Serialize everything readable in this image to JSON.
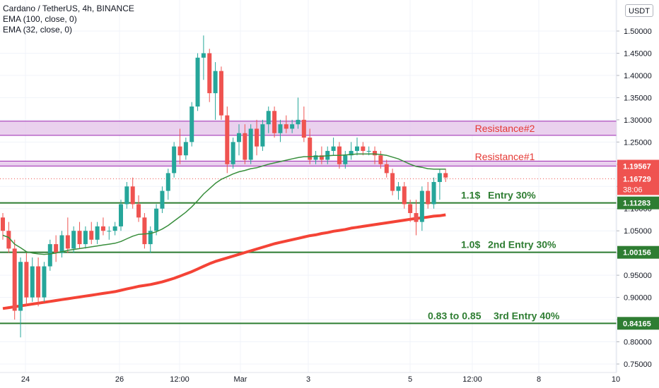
{
  "legend": {
    "symbol": "Cardano / TetherUS, 4h, BINANCE",
    "ema1": "EMA (100, close, 0)",
    "ema2": "EMA (32, close, 0)"
  },
  "currency_button": "USDT",
  "colors": {
    "up": "#26a69a",
    "down": "#ef5350",
    "ema_fast": "#388e3c",
    "ema_slow": "#f44336",
    "support": "#2e7d32",
    "resistance_text": "#e53935",
    "zone_fill": "#e1bee7",
    "zone_line": "#9c27b0"
  },
  "chart_data": {
    "type": "candlestick",
    "y_range": [
      0.745,
      1.535
    ],
    "y_ticks": [
      "1.50000",
      "1.45000",
      "1.40000",
      "1.35000",
      "1.30000",
      "1.25000",
      "1.20000",
      "1.15000",
      "1.10000",
      "1.05000",
      "1.00000",
      "0.95000",
      "0.90000",
      "0.85000",
      "0.80000",
      "0.75000"
    ],
    "x_ticks": [
      "24",
      "26",
      "12:00",
      "Mar",
      "3",
      "5",
      "12:00",
      "8",
      "10"
    ],
    "candles": [
      [
        1.08,
        1.09,
        1.03,
        1.05
      ],
      [
        1.05,
        1.07,
        1.0,
        1.01
      ],
      [
        1.01,
        1.03,
        0.85,
        0.87
      ],
      [
        0.87,
        0.99,
        0.81,
        0.98
      ],
      [
        0.98,
        1.0,
        0.88,
        0.9
      ],
      [
        0.9,
        0.99,
        0.89,
        0.97
      ],
      [
        0.97,
        0.99,
        0.88,
        0.9
      ],
      [
        0.9,
        0.98,
        0.89,
        0.97
      ],
      [
        0.97,
        1.03,
        0.96,
        1.02
      ],
      [
        1.02,
        1.04,
        0.98,
        1.0
      ],
      [
        1.0,
        1.05,
        0.99,
        1.04
      ],
      [
        1.04,
        1.08,
        1.0,
        1.01
      ],
      [
        1.01,
        1.06,
        1.0,
        1.05
      ],
      [
        1.05,
        1.07,
        1.01,
        1.02
      ],
      [
        1.02,
        1.06,
        1.01,
        1.05
      ],
      [
        1.05,
        1.07,
        1.02,
        1.03
      ],
      [
        1.03,
        1.07,
        1.02,
        1.06
      ],
      [
        1.06,
        1.08,
        1.04,
        1.05
      ],
      [
        1.05,
        1.06,
        1.03,
        1.05
      ],
      [
        1.05,
        1.07,
        1.04,
        1.06
      ],
      [
        1.06,
        1.12,
        1.05,
        1.11
      ],
      [
        1.11,
        1.16,
        1.1,
        1.15
      ],
      [
        1.15,
        1.17,
        1.1,
        1.11
      ],
      [
        1.11,
        1.13,
        1.07,
        1.08
      ],
      [
        1.08,
        1.09,
        1.01,
        1.02
      ],
      [
        1.02,
        1.06,
        1.0,
        1.05
      ],
      [
        1.05,
        1.11,
        1.04,
        1.1
      ],
      [
        1.1,
        1.15,
        1.09,
        1.14
      ],
      [
        1.14,
        1.19,
        1.12,
        1.18
      ],
      [
        1.18,
        1.25,
        1.17,
        1.24
      ],
      [
        1.24,
        1.28,
        1.2,
        1.22
      ],
      [
        1.22,
        1.26,
        1.21,
        1.25
      ],
      [
        1.25,
        1.34,
        1.24,
        1.33
      ],
      [
        1.33,
        1.45,
        1.32,
        1.44
      ],
      [
        1.44,
        1.49,
        1.39,
        1.45
      ],
      [
        1.45,
        1.46,
        1.34,
        1.36
      ],
      [
        1.36,
        1.43,
        1.3,
        1.41
      ],
      [
        1.41,
        1.42,
        1.3,
        1.31
      ],
      [
        1.31,
        1.33,
        1.18,
        1.2
      ],
      [
        1.2,
        1.26,
        1.19,
        1.25
      ],
      [
        1.25,
        1.29,
        1.22,
        1.27
      ],
      [
        1.27,
        1.29,
        1.2,
        1.21
      ],
      [
        1.21,
        1.29,
        1.2,
        1.28
      ],
      [
        1.28,
        1.3,
        1.22,
        1.24
      ],
      [
        1.24,
        1.3,
        1.23,
        1.29
      ],
      [
        1.29,
        1.33,
        1.27,
        1.32
      ],
      [
        1.32,
        1.33,
        1.26,
        1.27
      ],
      [
        1.27,
        1.3,
        1.25,
        1.29
      ],
      [
        1.29,
        1.31,
        1.27,
        1.28
      ],
      [
        1.28,
        1.3,
        1.27,
        1.29
      ],
      [
        1.29,
        1.35,
        1.28,
        1.3
      ],
      [
        1.3,
        1.33,
        1.25,
        1.26
      ],
      [
        1.26,
        1.28,
        1.2,
        1.21
      ],
      [
        1.21,
        1.23,
        1.2,
        1.22
      ],
      [
        1.22,
        1.24,
        1.2,
        1.21
      ],
      [
        1.21,
        1.24,
        1.2,
        1.23
      ],
      [
        1.23,
        1.26,
        1.22,
        1.24
      ],
      [
        1.24,
        1.25,
        1.19,
        1.2
      ],
      [
        1.2,
        1.23,
        1.19,
        1.22
      ],
      [
        1.22,
        1.25,
        1.21,
        1.23
      ],
      [
        1.23,
        1.26,
        1.22,
        1.24
      ],
      [
        1.24,
        1.25,
        1.22,
        1.23
      ],
      [
        1.23,
        1.24,
        1.22,
        1.23
      ],
      [
        1.23,
        1.24,
        1.2,
        1.22
      ],
      [
        1.22,
        1.23,
        1.19,
        1.2
      ],
      [
        1.2,
        1.21,
        1.17,
        1.18
      ],
      [
        1.18,
        1.19,
        1.13,
        1.14
      ],
      [
        1.14,
        1.16,
        1.12,
        1.15
      ],
      [
        1.15,
        1.16,
        1.1,
        1.11
      ],
      [
        1.11,
        1.12,
        1.07,
        1.09
      ],
      [
        1.09,
        1.12,
        1.04,
        1.07
      ],
      [
        1.07,
        1.15,
        1.05,
        1.14
      ],
      [
        1.14,
        1.16,
        1.1,
        1.11
      ],
      [
        1.11,
        1.17,
        1.1,
        1.16
      ],
      [
        1.16,
        1.19,
        1.12,
        1.18
      ],
      [
        1.18,
        1.19,
        1.16,
        1.17
      ]
    ],
    "ema_fast": [
      1.04,
      1.035,
      1.02,
      1.012,
      1.003,
      1.0,
      0.998,
      0.997,
      0.998,
      1.0,
      1.003,
      1.006,
      1.008,
      1.01,
      1.012,
      1.014,
      1.016,
      1.018,
      1.02,
      1.022,
      1.026,
      1.032,
      1.038,
      1.042,
      1.043,
      1.044,
      1.048,
      1.054,
      1.062,
      1.072,
      1.082,
      1.092,
      1.104,
      1.118,
      1.133,
      1.145,
      1.157,
      1.166,
      1.172,
      1.178,
      1.183,
      1.186,
      1.19,
      1.192,
      1.196,
      1.2,
      1.203,
      1.206,
      1.209,
      1.212,
      1.215,
      1.217,
      1.217,
      1.218,
      1.218,
      1.219,
      1.22,
      1.22,
      1.221,
      1.222,
      1.223,
      1.223,
      1.223,
      1.223,
      1.222,
      1.22,
      1.216,
      1.212,
      1.206,
      1.2,
      1.195,
      1.193,
      1.19,
      1.189,
      1.189,
      1.189
    ],
    "ema_slow": [
      0.875,
      0.877,
      0.879,
      0.881,
      0.883,
      0.885,
      0.887,
      0.889,
      0.891,
      0.893,
      0.895,
      0.897,
      0.899,
      0.901,
      0.903,
      0.905,
      0.907,
      0.909,
      0.911,
      0.913,
      0.916,
      0.919,
      0.922,
      0.925,
      0.927,
      0.929,
      0.932,
      0.935,
      0.939,
      0.943,
      0.948,
      0.953,
      0.958,
      0.964,
      0.97,
      0.976,
      0.981,
      0.985,
      0.989,
      0.993,
      0.997,
      1.001,
      1.005,
      1.009,
      1.013,
      1.017,
      1.021,
      1.024,
      1.027,
      1.03,
      1.033,
      1.036,
      1.039,
      1.041,
      1.044,
      1.046,
      1.049,
      1.051,
      1.053,
      1.056,
      1.058,
      1.06,
      1.062,
      1.064,
      1.066,
      1.068,
      1.07,
      1.072,
      1.074,
      1.076,
      1.078,
      1.079,
      1.081,
      1.083,
      1.084,
      1.086
    ],
    "price_labels": [
      {
        "value": 1.19567,
        "text": "1.19567",
        "kind": "red"
      },
      {
        "value": 1.16729,
        "text": "1.16729",
        "kind": "red"
      },
      {
        "value": 1.11283,
        "text": "1.11283",
        "kind": "green"
      },
      {
        "value": 1.00156,
        "text": "1.00156",
        "kind": "green"
      },
      {
        "value": 0.84165,
        "text": "0.84165",
        "kind": "green"
      }
    ],
    "countdown": "38:06",
    "zones": [
      {
        "top": 1.297,
        "bottom": 1.265,
        "label": "Resistance#2"
      },
      {
        "top": 1.207,
        "bottom": 1.196,
        "label": "Resistance#1"
      }
    ],
    "support_lines": [
      {
        "value": 1.11283,
        "price_text": "1.1$",
        "entry_text": "Entry 30%"
      },
      {
        "value": 1.00156,
        "price_text": "1.0$",
        "entry_text": "2nd Entry 30%"
      },
      {
        "value": 0.84165,
        "price_text": "0.83 to 0.85",
        "entry_text": "3rd Entry 40%"
      }
    ]
  }
}
